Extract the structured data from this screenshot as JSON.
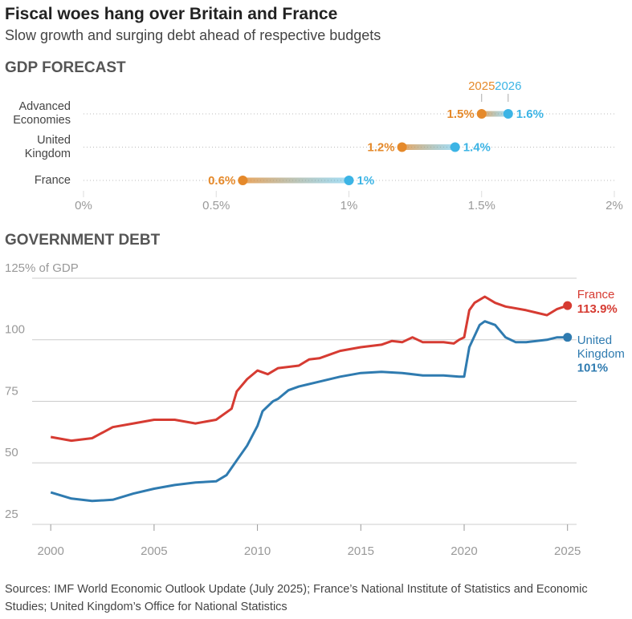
{
  "title": "Fiscal woes hang over Britain and France",
  "subtitle": "Slow growth and surging debt ahead of respective budgets",
  "source": "Sources: IMF World Economic Outlook Update (July 2025); France’s National Institute of Statistics and Economic Studies; United Kingdom’s Office for National Statistics",
  "chart_data": [
    {
      "type": "dumbbell",
      "title": "GDP FORECAST",
      "categories": [
        "Advanced Economies",
        "United Kingdom",
        "France"
      ],
      "series": [
        {
          "name": "2025",
          "color": "#e5892a",
          "values": [
            1.5,
            1.2,
            0.6
          ],
          "value_labels": [
            "1.5%",
            "1.2%",
            "0.6%"
          ]
        },
        {
          "name": "2026",
          "color": "#3cb4e5",
          "values": [
            1.6,
            1.4,
            1.0
          ],
          "value_labels": [
            "1.6%",
            "1.4%",
            "1%"
          ]
        }
      ],
      "xlim": [
        0,
        2
      ],
      "xticks": [
        {
          "value": 0,
          "label": "0%"
        },
        {
          "value": 0.5,
          "label": "0.5%"
        },
        {
          "value": 1,
          "label": "1%"
        },
        {
          "value": 1.5,
          "label": "1.5%"
        },
        {
          "value": 2,
          "label": "2%"
        }
      ]
    },
    {
      "type": "line",
      "title": "GOVERNMENT DEBT",
      "series": [
        {
          "name": "France",
          "color": "#d63b32",
          "end_label": "113.9%",
          "x": [
            2000,
            2001,
            2002,
            2003,
            2004,
            2005,
            2006,
            2007,
            2008,
            2008.75,
            2009,
            2009.5,
            2010,
            2010.5,
            2011,
            2012,
            2012.5,
            2013,
            2013.5,
            2014,
            2015,
            2016,
            2016.5,
            2017,
            2017.5,
            2018,
            2019,
            2019.5,
            2019.75,
            2020,
            2020.25,
            2020.5,
            2021,
            2021.5,
            2022,
            2023,
            2023.5,
            2024,
            2024.5,
            2025
          ],
          "values": [
            60.5,
            59,
            60,
            64.5,
            66,
            67.5,
            67.5,
            66,
            67.5,
            72,
            79,
            84,
            87.5,
            86,
            88.5,
            89.5,
            92,
            92.5,
            94,
            95.5,
            97,
            98,
            99.5,
            99,
            101,
            99,
            99,
            98.5,
            100,
            101,
            112,
            115,
            117.5,
            115,
            113.5,
            112,
            111,
            110,
            112.5,
            113.9
          ]
        },
        {
          "name": "United Kingdom",
          "color": "#2f7bb0",
          "end_label": "101%",
          "x": [
            2000,
            2001,
            2002,
            2003,
            2004,
            2005,
            2006,
            2007,
            2008,
            2008.5,
            2009,
            2009.5,
            2010,
            2010.25,
            2010.75,
            2011,
            2011.5,
            2012,
            2013,
            2014,
            2015,
            2016,
            2017,
            2018,
            2019,
            2019.75,
            2020,
            2020.25,
            2020.75,
            2021,
            2021.5,
            2022,
            2022.5,
            2023,
            2023.5,
            2024,
            2024.5,
            2025
          ],
          "values": [
            38,
            35.5,
            34.5,
            35,
            37.5,
            39.5,
            41,
            42,
            42.5,
            45,
            51,
            57,
            65,
            71,
            75,
            76,
            79.5,
            81,
            83,
            85,
            86.5,
            87,
            86.5,
            85.5,
            85.5,
            85,
            85,
            97,
            106,
            107.5,
            106,
            101,
            99,
            99,
            99.5,
            100,
            101,
            101
          ]
        }
      ],
      "xlim": [
        1999.1,
        2025.4
      ],
      "xticks": [
        2000,
        2005,
        2010,
        2015,
        2020,
        2025
      ],
      "ylim": [
        25,
        125
      ],
      "yticks": [
        {
          "value": 125,
          "label": "125% of GDP"
        },
        100,
        75,
        50,
        25
      ],
      "grid": true
    }
  ]
}
